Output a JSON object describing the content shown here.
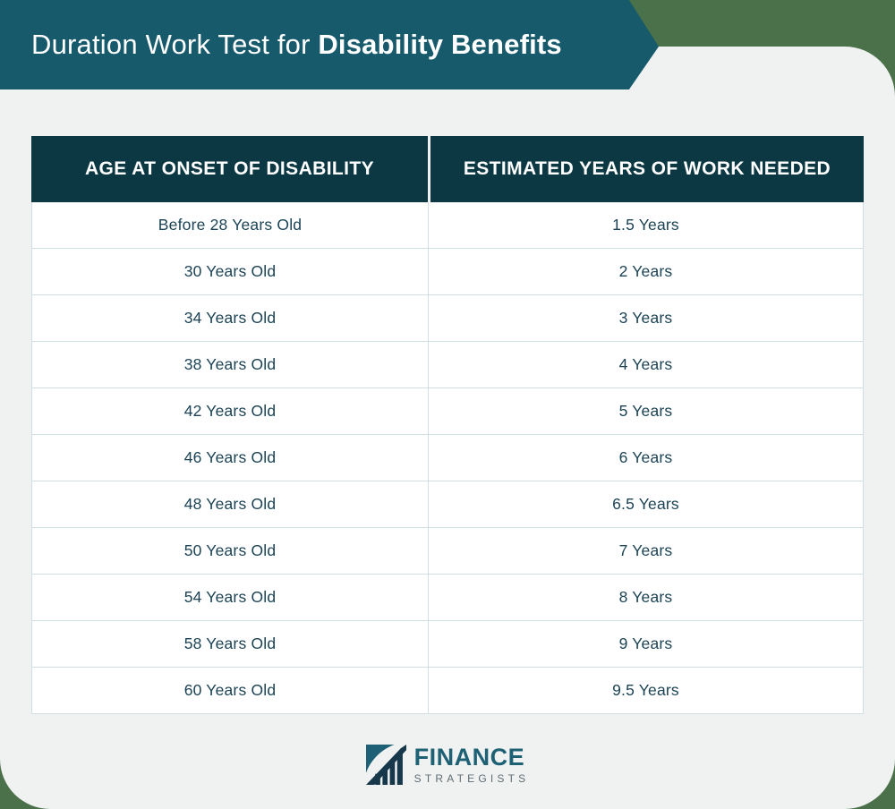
{
  "banner": {
    "title_regular": "Duration Work Test for",
    "title_bold": "Disability Benefits"
  },
  "table": {
    "columns": [
      "AGE AT ONSET OF DISABILITY",
      "ESTIMATED YEARS OF WORK NEEDED"
    ],
    "rows": [
      [
        "Before 28 Years Old",
        "1.5 Years"
      ],
      [
        "30 Years Old",
        "2 Years"
      ],
      [
        "34 Years Old",
        "3 Years"
      ],
      [
        "38 Years Old",
        "4 Years"
      ],
      [
        "42 Years Old",
        "5 Years"
      ],
      [
        "46 Years Old",
        "6 Years"
      ],
      [
        "48 Years Old",
        "6.5 Years"
      ],
      [
        "50 Years Old",
        "7 Years"
      ],
      [
        "54 Years Old",
        "8 Years"
      ],
      [
        "58 Years Old",
        "9 Years"
      ],
      [
        "60 Years Old",
        "9.5 Years"
      ]
    ]
  },
  "logo": {
    "brand": "FINANCE",
    "sub": "STRATEGISTS"
  },
  "colors": {
    "backdrop_green": "#4a7149",
    "banner_teal": "#175a6c",
    "header_navy": "#0c3843",
    "panel_gray": "#f0f2f2",
    "row_text": "#1b4355",
    "row_border": "#cfdfe3",
    "brand_teal": "#1e6175",
    "brand_gray": "#5e6d73"
  },
  "chart_data": {
    "type": "table",
    "title": "Duration Work Test for Disability Benefits",
    "columns": [
      "AGE AT ONSET OF DISABILITY",
      "ESTIMATED YEARS OF WORK NEEDED"
    ],
    "categories": [
      "Before 28 Years Old",
      "30 Years Old",
      "34 Years Old",
      "38 Years Old",
      "42 Years Old",
      "46 Years Old",
      "48 Years Old",
      "50 Years Old",
      "54 Years Old",
      "58 Years Old",
      "60 Years Old"
    ],
    "values": [
      1.5,
      2,
      3,
      4,
      5,
      6,
      6.5,
      7,
      8,
      9,
      9.5
    ],
    "values_unit": "Years"
  }
}
